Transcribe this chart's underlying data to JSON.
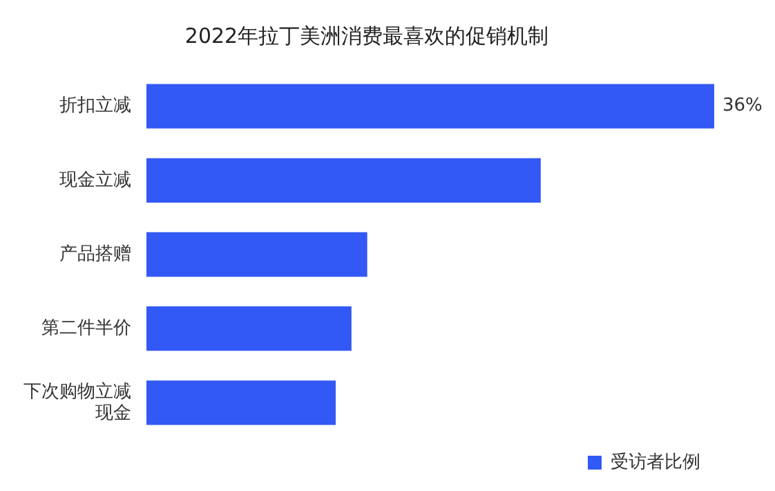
{
  "chart_data": {
    "type": "bar",
    "orientation": "horizontal",
    "title": "2022年拉丁美洲消费最喜欢的促销机制",
    "categories": [
      "折扣立减",
      "现金立减",
      "产品搭赠",
      "第二件半价",
      "下次购物立减现金"
    ],
    "series": [
      {
        "name": "受访者比例",
        "color": "#3259f5",
        "values": [
          36,
          25,
          14,
          13,
          12
        ],
        "value_labels": [
          "36%",
          null,
          null,
          null,
          null
        ]
      }
    ],
    "legend": "bottom right"
  }
}
